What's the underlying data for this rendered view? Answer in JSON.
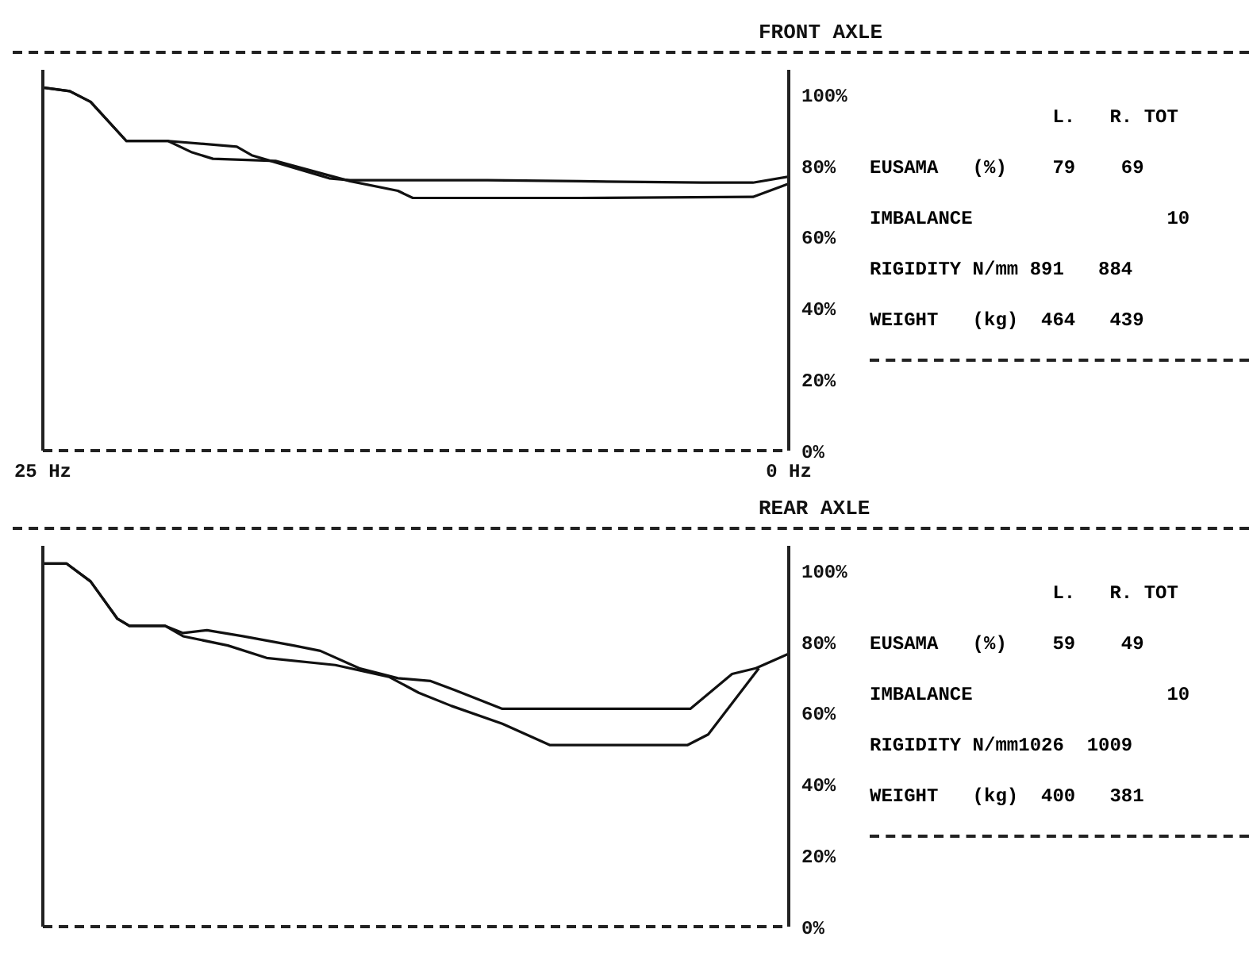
{
  "chart_data": [
    {
      "type": "line",
      "title": "FRONT AXLE",
      "xlim": [
        25,
        0
      ],
      "xticks": [
        {
          "value": 25,
          "label": "25 Hz"
        },
        {
          "value": 0,
          "label": "0 Hz"
        }
      ],
      "ylim": [
        0,
        107
      ],
      "yticks": [
        {
          "value": 0,
          "label": "0%"
        },
        {
          "value": 20,
          "label": "20%"
        },
        {
          "value": 40,
          "label": "40%"
        },
        {
          "value": 60,
          "label": "60%"
        },
        {
          "value": 80,
          "label": "80%"
        },
        {
          "value": 100,
          "label": "100%"
        }
      ],
      "grid": false,
      "legend": false,
      "marker": "none",
      "line_style": "solid",
      "series": [
        {
          "color": "#111111",
          "x": [
            25,
            24.1,
            23.4,
            22.2,
            20.8,
            18.5,
            18.0,
            17.2,
            15.4,
            14.7,
            10.1,
            7.0,
            2.9,
            1.2,
            0
          ],
          "values": [
            102,
            101,
            98,
            87,
            87,
            85.4,
            83,
            81,
            76.5,
            76,
            76,
            75.7,
            75.3,
            75.3,
            77
          ]
        },
        {
          "color": "#111111",
          "x": [
            25,
            24.1,
            23.4,
            22.2,
            20.8,
            20.0,
            19.3,
            17.2,
            14.7,
            13.1,
            12.6,
            7.0,
            1.2,
            0
          ],
          "values": [
            102,
            101,
            98,
            87,
            87,
            83.8,
            82,
            81.4,
            75.7,
            73,
            71,
            71,
            71.3,
            75
          ]
        }
      ],
      "annotations": [
        "                L.   R. TOT",
        "EUSAMA   (%)    79    69",
        "IMBALANCE                 10",
        "RIGIDITY N/mm 891   884",
        "WEIGHT   (kg)  464   439"
      ]
    },
    {
      "type": "line",
      "title": "REAR AXLE",
      "xlim": [
        25,
        0
      ],
      "tick_labels": "y",
      "ylim": [
        0,
        107
      ],
      "yticks": [
        {
          "value": 0,
          "label": "0%"
        },
        {
          "value": 20,
          "label": "20%"
        },
        {
          "value": 40,
          "label": "40%"
        },
        {
          "value": 60,
          "label": "60%"
        },
        {
          "value": 80,
          "label": "80%"
        },
        {
          "value": 100,
          "label": "100%"
        }
      ],
      "grid": false,
      "legend": false,
      "marker": "none",
      "line_style": "solid",
      "series": [
        {
          "color": "#111111",
          "x": [
            25,
            24.2,
            23.4,
            22.5,
            22.1,
            20.9,
            20.3,
            19.5,
            18.3,
            16.6,
            15.7,
            14.4,
            13.1,
            12.0,
            11.2,
            9.6,
            3.3,
            1.9,
            1.1,
            0
          ],
          "values": [
            102,
            102,
            97,
            86.5,
            84.5,
            84.5,
            82.5,
            83.3,
            81.6,
            79,
            77.5,
            72.6,
            69.8,
            69,
            66.5,
            61.2,
            61.2,
            71,
            72.6,
            76.7
          ]
        },
        {
          "color": "#111111",
          "x": [
            25,
            24.2,
            23.4,
            22.5,
            22.1,
            20.9,
            20.3,
            18.8,
            17.5,
            15.2,
            13.4,
            12.4,
            11.3,
            9.6,
            8.0,
            3.4,
            2.7,
            1.0
          ],
          "values": [
            102,
            102,
            97,
            86.5,
            84.5,
            84.5,
            81.6,
            79,
            75.5,
            73.5,
            70.2,
            65.7,
            62,
            57,
            51,
            51,
            54,
            72.6
          ]
        }
      ],
      "annotations": [
        "                L.   R. TOT",
        "EUSAMA   (%)    59    49",
        "IMBALANCE                 10",
        "RIGIDITY N/mm1026  1009",
        "WEIGHT   (kg)  400   381"
      ]
    }
  ]
}
